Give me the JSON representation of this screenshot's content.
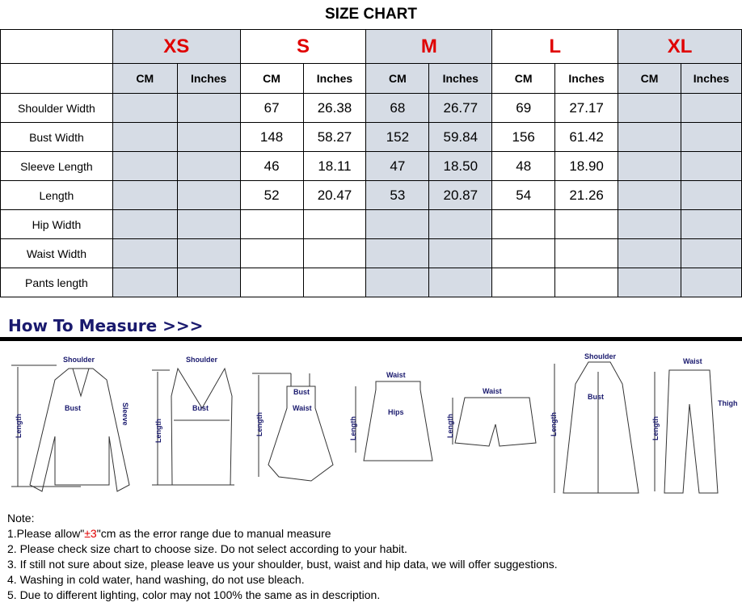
{
  "title": "SIZE CHART",
  "sizes": [
    "XS",
    "S",
    "M",
    "L",
    "XL"
  ],
  "units": [
    "CM",
    "Inches"
  ],
  "rows": [
    {
      "label": "Shoulder Width",
      "values": [
        "",
        "",
        "67",
        "26.38",
        "68",
        "26.77",
        "69",
        "27.17",
        "",
        ""
      ]
    },
    {
      "label": "Bust Width",
      "values": [
        "",
        "",
        "148",
        "58.27",
        "152",
        "59.84",
        "156",
        "61.42",
        "",
        ""
      ]
    },
    {
      "label": "Sleeve Length",
      "values": [
        "",
        "",
        "46",
        "18.11",
        "47",
        "18.50",
        "48",
        "18.90",
        "",
        ""
      ]
    },
    {
      "label": "Length",
      "values": [
        "",
        "",
        "52",
        "20.47",
        "53",
        "20.87",
        "54",
        "21.26",
        "",
        ""
      ]
    },
    {
      "label": "Hip Width",
      "values": [
        "",
        "",
        "",
        "",
        "",
        "",
        "",
        "",
        "",
        ""
      ]
    },
    {
      "label": "Waist Width",
      "values": [
        "",
        "",
        "",
        "",
        "",
        "",
        "",
        "",
        "",
        ""
      ]
    },
    {
      "label": "Pants length",
      "values": [
        "",
        "",
        "",
        "",
        "",
        "",
        "",
        "",
        "",
        ""
      ]
    }
  ],
  "colors": {
    "size_label": "#e00000",
    "shaded_column": "#d6dce5",
    "measure_text": "#1a1a6e"
  },
  "how_to_measure": {
    "title": "How To Measure >>>",
    "labels": {
      "shoulder": "Shoulder",
      "bust": "Bust",
      "sleeve": "Sleeve",
      "length": "Length",
      "waist": "Waist",
      "hips": "Hips",
      "thigh": "Thigh"
    }
  },
  "notes": {
    "heading": "Note:",
    "n1_pre": "1.Please allow\"",
    "n1_red": "±3",
    "n1_post": "\"cm as the error range due to manual measure",
    "items": [
      "2. Please check size chart to choose size. Do not select according to your habit.",
      "3. If still not sure about size, please leave us your shoulder, bust, waist and hip data, we will offer suggestions.",
      "4. Washing in cold water, hand washing, do not use bleach.",
      "5. Due to different lighting, color may not 100% the same as in description."
    ]
  }
}
